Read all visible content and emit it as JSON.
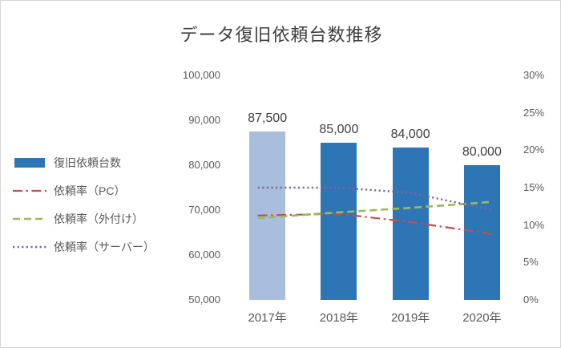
{
  "chart_data": {
    "type": "bar",
    "title": "データ復旧依頼台数推移",
    "categories": [
      "2017年",
      "2018年",
      "2019年",
      "2020年"
    ],
    "bar_series": {
      "name": "復旧依頼台数",
      "axis": "left",
      "values": [
        87500,
        85000,
        84000,
        80000
      ],
      "data_labels": [
        "87,500",
        "85,000",
        "84,000",
        "80,000"
      ],
      "color": "#2e75b6",
      "colors": [
        "#a7bfdc",
        "#2e75b6",
        "#2e75b6",
        "#2e75b6"
      ]
    },
    "line_series": [
      {
        "name": "依頼率（PC）",
        "axis": "right",
        "style": "dashdot",
        "color": "#c0504d",
        "values": [
          11.3,
          11.5,
          10.4,
          9.0
        ]
      },
      {
        "name": "依頼率（外付け）",
        "axis": "right",
        "style": "dashed",
        "color": "#9bbb59",
        "values": [
          11.0,
          11.7,
          12.3,
          13.0
        ]
      },
      {
        "name": "依頼率（サーバー）",
        "axis": "right",
        "style": "dotted",
        "color": "#8064a2",
        "values": [
          15.0,
          15.0,
          14.3,
          12.3
        ]
      }
    ],
    "left_axis": {
      "min": 50000,
      "max": 100000,
      "tick_step": 10000,
      "ticks": [
        "100,000",
        "90,000",
        "80,000",
        "70,000",
        "60,000",
        "50,000"
      ]
    },
    "right_axis": {
      "min": 0,
      "max": 30,
      "tick_step": 5,
      "ticks": [
        "30%",
        "25%",
        "20%",
        "15%",
        "10%",
        "5%",
        "0%"
      ]
    },
    "legend_position": "left",
    "grid": false
  }
}
